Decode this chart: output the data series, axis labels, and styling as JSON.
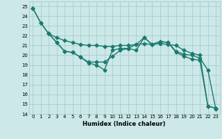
{
  "series1": {
    "x": [
      0,
      1,
      2,
      3,
      4,
      5,
      6,
      7,
      8,
      9,
      10,
      11,
      12,
      13,
      14,
      15,
      16,
      17,
      18,
      19,
      20,
      21,
      22,
      23
    ],
    "y": [
      24.8,
      23.3,
      22.2,
      21.3,
      20.4,
      20.3,
      19.8,
      19.3,
      19.3,
      19.3,
      19.9,
      20.5,
      20.7,
      21.1,
      21.8,
      21.1,
      21.4,
      21.3,
      20.3,
      19.9,
      19.6,
      19.5,
      14.8,
      14.6
    ]
  },
  "series2": {
    "x": [
      0,
      1,
      2,
      3,
      4,
      5,
      6,
      7,
      8,
      9,
      10,
      11,
      12,
      13,
      14,
      15,
      16,
      17,
      18,
      19,
      20,
      21,
      22,
      23
    ],
    "y": [
      24.8,
      23.3,
      22.2,
      21.8,
      21.5,
      21.3,
      21.1,
      21.0,
      21.0,
      20.9,
      20.9,
      21.0,
      21.0,
      21.1,
      21.2,
      21.1,
      21.2,
      21.1,
      21.0,
      20.5,
      20.2,
      20.0,
      14.8,
      14.6
    ]
  },
  "series3": {
    "x": [
      2,
      3,
      4,
      5,
      6,
      7,
      8,
      9,
      10,
      11,
      12,
      13,
      14,
      15,
      16,
      17,
      18,
      19,
      20,
      21,
      22,
      23
    ],
    "y": [
      22.2,
      21.3,
      20.4,
      20.3,
      19.8,
      19.2,
      19.0,
      18.5,
      20.5,
      20.7,
      20.7,
      20.5,
      21.8,
      21.1,
      21.4,
      21.3,
      20.4,
      20.1,
      20.0,
      19.7,
      18.5,
      14.5
    ]
  },
  "color": "#1a7a6e",
  "bg_color": "#cce8e8",
  "grid_color": "#aacccc",
  "xlabel": "Humidex (Indice chaleur)",
  "ylim": [
    14,
    25.5
  ],
  "xlim": [
    -0.5,
    23.5
  ],
  "yticks": [
    14,
    15,
    16,
    17,
    18,
    19,
    20,
    21,
    22,
    23,
    24,
    25
  ],
  "xticks": [
    0,
    1,
    2,
    3,
    4,
    5,
    6,
    7,
    8,
    9,
    10,
    11,
    12,
    13,
    14,
    15,
    16,
    17,
    18,
    19,
    20,
    21,
    22,
    23
  ],
  "marker": "D",
  "markersize": 2.5,
  "linewidth": 1.0
}
